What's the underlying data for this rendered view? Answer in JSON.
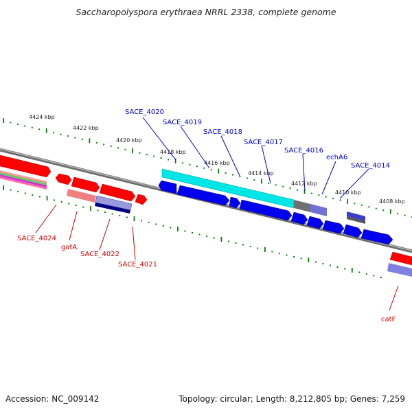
{
  "title": "Saccharopolyspora erythraea NRRL 2338, complete genome",
  "footer": {
    "accession": "Accession: NC_009142",
    "summary": "Topology: circular; Length: 8,212,805 bp; Genes: 7,259"
  },
  "colors": {
    "forward_gene": "#ff0000",
    "reverse_gene": "#0000ff",
    "cds_highlight": "#00ffff",
    "label_forward": "#cc0000",
    "label_reverse": "#0000cc",
    "backbone": "#888888",
    "gc_dots": "#0a7a0a"
  },
  "scale_ticks": [
    "4424 kbp",
    "4422 kbp",
    "4420 kbp",
    "4418 kbp",
    "4416 kbp",
    "4414 kbp",
    "4412 kbp",
    "4410 kbp",
    "4408 kbp"
  ],
  "gene_labels_top": [
    "SACE_4020",
    "SACE_4019",
    "SACE_4018",
    "SACE_4017",
    "SACE_4016",
    "echA6",
    "SACE_4014"
  ],
  "gene_labels_bottom": [
    "SACE_4024",
    "gatA",
    "SACE_4022",
    "SACE_4021",
    "catF"
  ]
}
